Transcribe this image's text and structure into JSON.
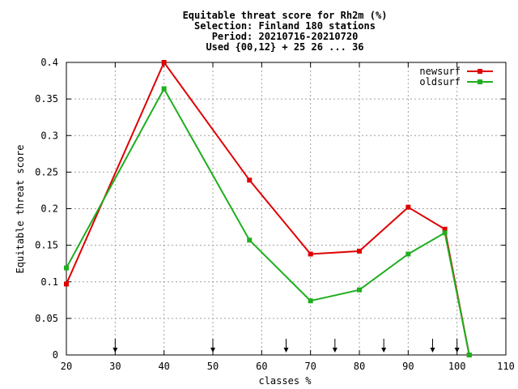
{
  "chart_data": {
    "type": "line",
    "title_lines": [
      "Equitable threat score  for Rh2m (%)",
      "Selection: Finland    180 stations",
      "Period: 20210716-20210720",
      "Used {00,12} + 25 26 ... 36"
    ],
    "xlabel": "classes %",
    "ylabel": "Equitable threat score",
    "xlim": [
      20,
      110
    ],
    "ylim": [
      0,
      0.4
    ],
    "x_ticks": [
      20,
      30,
      40,
      50,
      60,
      70,
      80,
      90,
      100,
      110
    ],
    "x_tick_labels": [
      "20",
      "30",
      "40",
      "50",
      "60",
      "70",
      "80",
      "90",
      "100",
      "110"
    ],
    "y_ticks": [
      0,
      0.05,
      0.1,
      0.15,
      0.2,
      0.25,
      0.3,
      0.35,
      0.4
    ],
    "y_tick_labels": [
      "0",
      "0.05",
      "0.1",
      "0.15",
      "0.2",
      "0.25",
      "0.3",
      "0.35",
      "0.4"
    ],
    "grid": true,
    "legend_position": "top-right",
    "class_arrows": [
      30,
      50,
      65,
      75,
      85,
      95,
      100
    ],
    "series": [
      {
        "name": "newsurf",
        "color": "#e00000",
        "x": [
          20,
          40,
          57.5,
          70,
          80,
          90,
          97.5,
          102.5
        ],
        "y": [
          0.097,
          0.4,
          0.239,
          0.138,
          0.142,
          0.202,
          0.172,
          0.0
        ]
      },
      {
        "name": "oldsurf",
        "color": "#1fae1f",
        "x": [
          20,
          40,
          57.5,
          70,
          80,
          90,
          97.5,
          102.5
        ],
        "y": [
          0.119,
          0.364,
          0.157,
          0.074,
          0.089,
          0.138,
          0.167,
          0.0
        ]
      }
    ]
  }
}
